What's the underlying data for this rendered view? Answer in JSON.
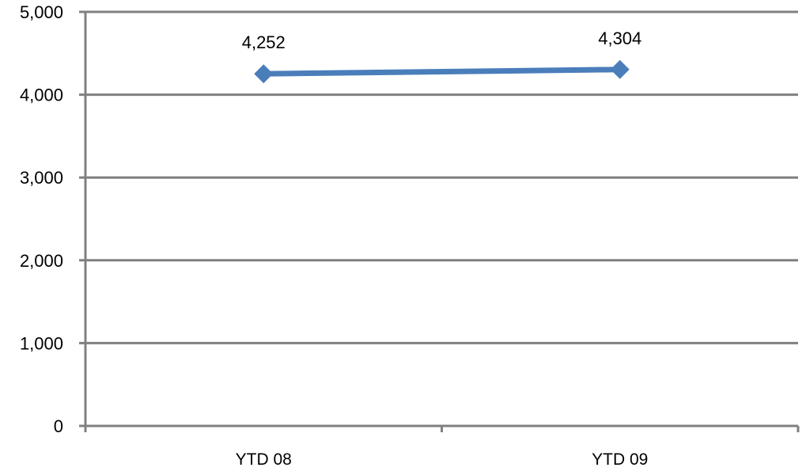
{
  "chart_data": {
    "type": "line",
    "title": "",
    "xlabel": "",
    "ylabel": "",
    "categories": [
      "YTD 08",
      "YTD 09"
    ],
    "series": [
      {
        "values": [
          4252,
          4304
        ],
        "data_labels": [
          "4,252",
          "4,304"
        ],
        "color": "#4A7EBB",
        "marker": "diamond"
      }
    ],
    "ylim": [
      0,
      5000
    ],
    "y_ticks": [
      0,
      1000,
      2000,
      3000,
      4000,
      5000
    ],
    "y_tick_labels": [
      "0",
      "1,000",
      "2,000",
      "3,000",
      "4,000",
      "5,000"
    ],
    "grid": true,
    "legend": "none",
    "gridline_color": "#808080",
    "axis_color": "#808080"
  }
}
